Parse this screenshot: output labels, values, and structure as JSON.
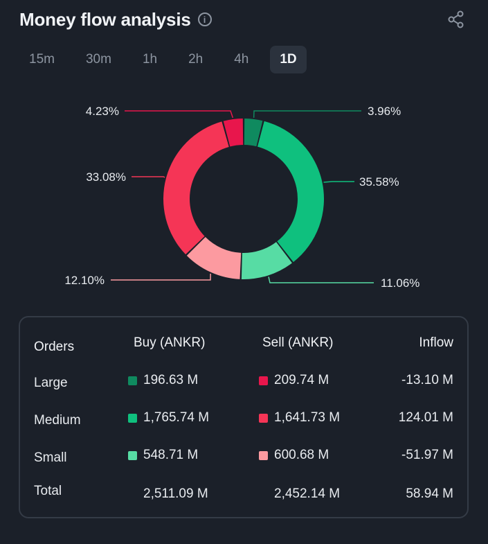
{
  "header": {
    "title": "Money flow analysis",
    "info_icon": "info-icon",
    "share_icon": "share-icon"
  },
  "tabs": [
    {
      "label": "15m",
      "active": false
    },
    {
      "label": "30m",
      "active": false
    },
    {
      "label": "1h",
      "active": false
    },
    {
      "label": "2h",
      "active": false
    },
    {
      "label": "4h",
      "active": false
    },
    {
      "label": "1D",
      "active": true
    }
  ],
  "colors": {
    "buy_large": "#0f8a5f",
    "buy_medium": "#0fc07e",
    "buy_small": "#57dca4",
    "sell_large": "#e8164c",
    "sell_medium": "#f53556",
    "sell_small": "#fc9aa0"
  },
  "donut": {
    "segments": [
      {
        "key": "buy_large",
        "label": "3.96%",
        "value": 3.96,
        "color": "#0f8a5f"
      },
      {
        "key": "buy_medium",
        "label": "35.58%",
        "value": 35.58,
        "color": "#0fc07e"
      },
      {
        "key": "buy_small",
        "label": "11.06%",
        "value": 11.06,
        "color": "#57dca4"
      },
      {
        "key": "sell_small",
        "label": "12.10%",
        "value": 12.1,
        "color": "#fc9aa0"
      },
      {
        "key": "sell_medium",
        "label": "33.08%",
        "value": 33.08,
        "color": "#f53556"
      },
      {
        "key": "sell_large",
        "label": "4.23%",
        "value": 4.23,
        "color": "#e8164c"
      }
    ]
  },
  "table": {
    "headers": {
      "orders": "Orders",
      "buy": "Buy (ANKR)",
      "sell": "Sell (ANKR)",
      "inflow": "Inflow"
    },
    "rows": [
      {
        "order": "Large",
        "buy": "196.63 M",
        "sell": "209.74 M",
        "inflow": "-13.10 M",
        "buy_color": "#0f8a5f",
        "sell_color": "#e8164c"
      },
      {
        "order": "Medium",
        "buy": "1,765.74 M",
        "sell": "1,641.73 M",
        "inflow": "124.01 M",
        "buy_color": "#0fc07e",
        "sell_color": "#f53556"
      },
      {
        "order": "Small",
        "buy": "548.71 M",
        "sell": "600.68 M",
        "inflow": "-51.97 M",
        "buy_color": "#57dca4",
        "sell_color": "#fc9aa0"
      }
    ],
    "total": {
      "order": "Total",
      "buy": "2,511.09 M",
      "sell": "2,452.14 M",
      "inflow": "58.94 M"
    }
  }
}
